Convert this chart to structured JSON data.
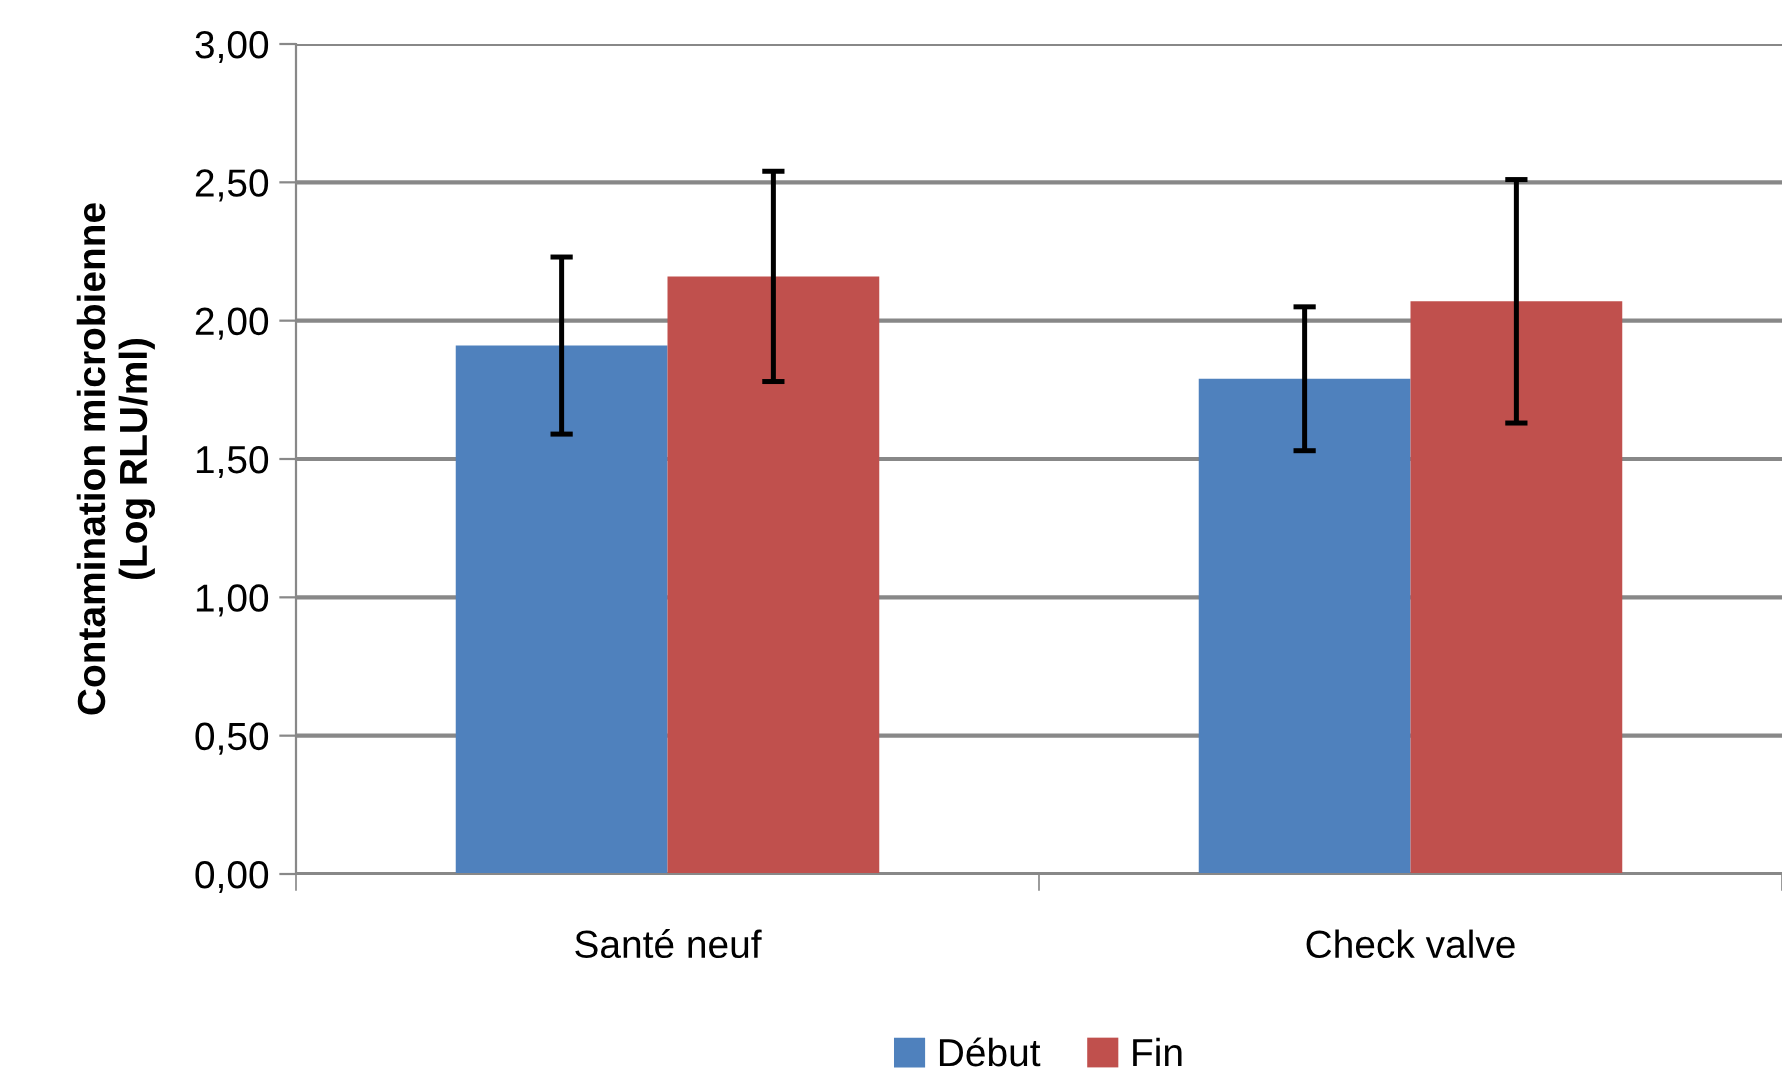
{
  "chart_data": {
    "type": "bar",
    "ylabel": "Contamination microbienne\n(Log RLU/ml)",
    "categories": [
      "Santé neuf",
      "Check valve"
    ],
    "series": [
      {
        "name": "Début",
        "color": "#4f81bd",
        "values": [
          1.91,
          1.79
        ],
        "errors": [
          0.32,
          0.26
        ]
      },
      {
        "name": "Fin",
        "color": "#c0504d",
        "values": [
          2.16,
          2.07
        ],
        "errors": [
          0.38,
          0.44
        ]
      }
    ],
    "ylim": [
      0,
      3
    ],
    "yticks": [
      {
        "value": 0,
        "label": "0,00"
      },
      {
        "value": 0.5,
        "label": "0,50"
      },
      {
        "value": 1,
        "label": "1,00"
      },
      {
        "value": 1.5,
        "label": "1,50"
      },
      {
        "value": 2,
        "label": "2,00"
      },
      {
        "value": 2.5,
        "label": "2,50"
      },
      {
        "value": 3,
        "label": "3,00"
      }
    ],
    "grid": "y",
    "legend": "bottom"
  }
}
